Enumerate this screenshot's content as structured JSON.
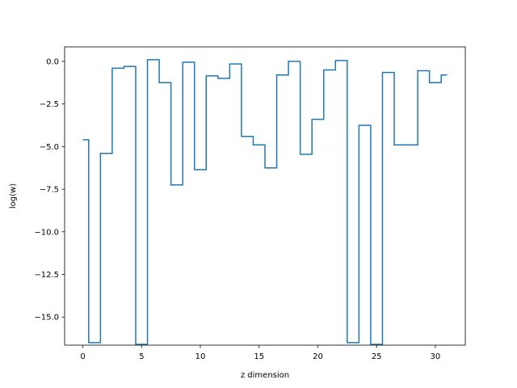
{
  "chart_data": {
    "type": "line",
    "drawstyle": "steps-mid",
    "title": "",
    "xlabel": "z dimension",
    "ylabel": "log(w)",
    "xlim": [
      -1.55,
      32.55
    ],
    "ylim": [
      -16.65,
      0.85
    ],
    "xticks": [
      0,
      5,
      10,
      15,
      20,
      25,
      30
    ],
    "xtick_labels": [
      "0",
      "5",
      "10",
      "15",
      "20",
      "25",
      "30"
    ],
    "yticks": [
      0.0,
      -2.5,
      -5.0,
      -7.5,
      -10.0,
      -12.5,
      -15.0
    ],
    "ytick_labels": [
      "0.0",
      "−2.5",
      "−5.0",
      "−7.5",
      "−10.0",
      "−12.5",
      "−15.0"
    ],
    "grid": false,
    "legend": "none",
    "series": [
      {
        "color": "#1f77b4",
        "x": [
          0,
          1,
          2,
          3,
          4,
          5,
          6,
          7,
          8,
          9,
          10,
          11,
          12,
          13,
          14,
          15,
          16,
          17,
          18,
          19,
          20,
          21,
          22,
          23,
          24,
          25,
          26,
          27,
          28,
          29,
          30,
          31
        ],
        "y": [
          -4.6,
          -16.5,
          -5.4,
          -0.4,
          -0.3,
          -16.6,
          0.1,
          -1.25,
          -7.25,
          -0.05,
          -6.35,
          -0.85,
          -1.0,
          -0.15,
          -4.4,
          -4.9,
          -6.25,
          -0.8,
          0.0,
          -5.45,
          -3.4,
          -0.5,
          0.05,
          -16.5,
          -3.75,
          -16.6,
          -0.65,
          -4.9,
          -4.9,
          -0.55,
          -1.25,
          -0.8
        ]
      }
    ]
  }
}
